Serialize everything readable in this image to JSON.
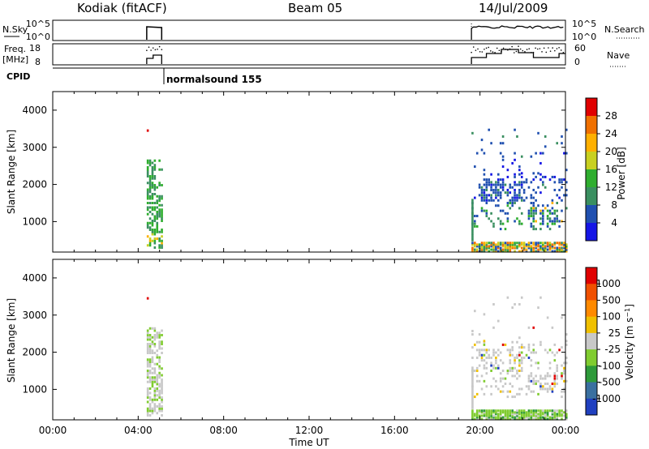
{
  "header": {
    "station": "Kodiak (fitACF)",
    "beam": "Beam 05",
    "date": "14/Jul/2009"
  },
  "top_panels": {
    "nsky_label": "N.Sky",
    "nsky_ticks": [
      "10^5",
      "10^0"
    ],
    "nsearch_label": "N.Search",
    "nsearch_ticks": [
      "10^5",
      "10^0"
    ],
    "freq_label": "Freq.",
    "freq_unit": "[MHz]",
    "freq_ticks": [
      "18",
      "8"
    ],
    "nave_label": "Nave",
    "nave_ticks": [
      "60",
      "0"
    ],
    "cpid_label": "CPID",
    "cpid_annotation": "normalsound 155"
  },
  "chart_data": [
    {
      "type": "heatmap",
      "name": "power",
      "ylabel": "Slant Range [km]",
      "yticks": [
        "4000",
        "3000",
        "2000",
        "1000"
      ],
      "ylim": [
        180,
        4500
      ],
      "xlim_hours": [
        0,
        24
      ],
      "colorbar_label": "Power [dB]",
      "colorbar_ticks": [
        "28",
        "24",
        "20",
        "16",
        "12",
        "8",
        "4"
      ],
      "colors": [
        "#1515e6",
        "#2050b0",
        "#3a8f60",
        "#2fae2f",
        "#c8d020",
        "#ffb000",
        "#f07000",
        "#e00000"
      ],
      "data_windows_hours": [
        [
          4.4,
          5.1
        ],
        [
          19.6,
          24.0
        ]
      ]
    },
    {
      "type": "heatmap",
      "name": "velocity",
      "ylabel": "Slant Range [km]",
      "yticks": [
        "4000",
        "3000",
        "2000",
        "1000"
      ],
      "ylim": [
        180,
        4500
      ],
      "xlim_hours": [
        0,
        24
      ],
      "colorbar_label": "Velocity [m s^-1]",
      "colorbar_ticks": [
        "1000",
        "500",
        "100",
        "25",
        "-25",
        "-100",
        "-500",
        "-1000"
      ],
      "colors": [
        "#2040c0",
        "#3a70a0",
        "#2e9a3a",
        "#80cc30",
        "#c8c8c8",
        "#f0c000",
        "#ff8a00",
        "#f05000",
        "#e00000"
      ],
      "data_windows_hours": [
        [
          4.4,
          5.1
        ],
        [
          19.6,
          24.0
        ]
      ]
    }
  ],
  "x_axis": {
    "label": "Time UT",
    "ticks": [
      "00:00",
      "04:00",
      "08:00",
      "12:00",
      "16:00",
      "20:00",
      "00:00"
    ]
  }
}
